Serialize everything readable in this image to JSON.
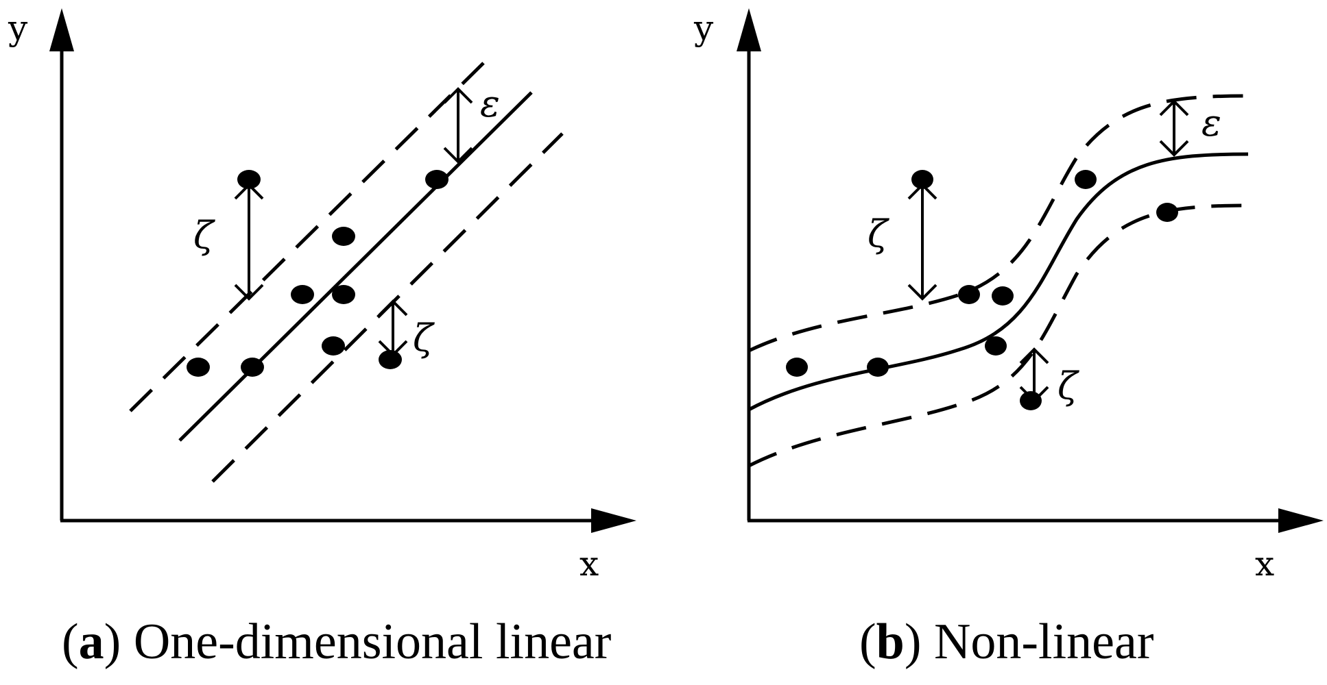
{
  "panels": [
    {
      "id": "a",
      "x_axis_label": "x",
      "y_axis_label": "y",
      "epsilon_label": "ε",
      "zeta_label_1": "ζ",
      "zeta_label_2": "ζ",
      "caption_letter": "a",
      "caption_text": " One-dimensional linear"
    },
    {
      "id": "b",
      "x_axis_label": "x",
      "y_axis_label": "y",
      "epsilon_label": "ε",
      "zeta_label_1": "ζ",
      "zeta_label_2": "ζ",
      "caption_letter": "b",
      "caption_text": " Non-linear"
    }
  ]
}
